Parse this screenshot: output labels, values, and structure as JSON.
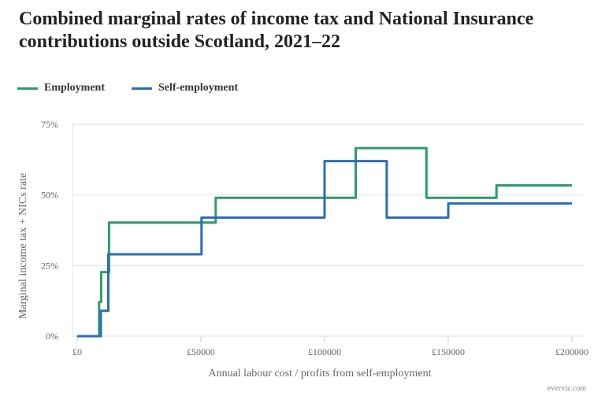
{
  "chart_data": {
    "type": "line",
    "step": true,
    "title": "Combined marginal rates of income tax and National Insurance contributions outside Scotland, 2021–22",
    "xlabel": "Annual labour cost / profits from self-employment",
    "ylabel": "Marginal income tax + NICs rate",
    "xlim": [
      0,
      200000
    ],
    "ylim": [
      0,
      75
    ],
    "x_ticks": [
      "£0",
      "£50000",
      "£100000",
      "£150000",
      "£200000"
    ],
    "y_ticks": [
      "0%",
      "25%",
      "50%",
      "75%"
    ],
    "grid": "horizontal",
    "legend_position": "top-left",
    "series": [
      {
        "name": "Employment",
        "color": "#2f9a6c",
        "points": [
          [
            0,
            0
          ],
          [
            8840,
            0
          ],
          [
            8840,
            12.1
          ],
          [
            9668,
            12.1
          ],
          [
            9668,
            22.7
          ],
          [
            12870,
            22.7
          ],
          [
            12870,
            40.2
          ],
          [
            55987,
            40.2
          ],
          [
            55987,
            49.0
          ],
          [
            112580,
            49.0
          ],
          [
            112580,
            66.6
          ],
          [
            141189,
            66.6
          ],
          [
            141189,
            49.0
          ],
          [
            169480,
            49.0
          ],
          [
            169480,
            53.4
          ],
          [
            200000,
            53.4
          ]
        ]
      },
      {
        "name": "Self-employment",
        "color": "#2a6db5",
        "points": [
          [
            0,
            0
          ],
          [
            9568,
            0
          ],
          [
            9568,
            9
          ],
          [
            12570,
            9
          ],
          [
            12570,
            29
          ],
          [
            50270,
            29
          ],
          [
            50270,
            42
          ],
          [
            100000,
            42
          ],
          [
            100000,
            62
          ],
          [
            125140,
            62
          ],
          [
            125140,
            42
          ],
          [
            150000,
            42
          ],
          [
            150000,
            47
          ],
          [
            200000,
            47
          ]
        ]
      }
    ]
  },
  "credit": "everviz.com"
}
